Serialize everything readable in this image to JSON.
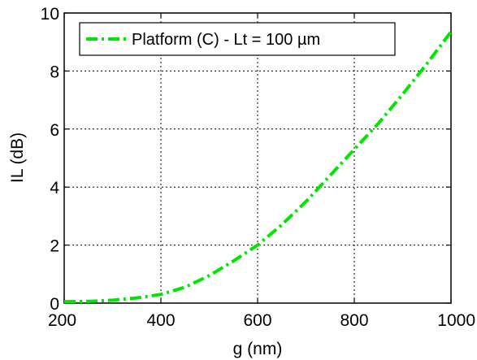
{
  "chart_data": {
    "type": "line",
    "title": "",
    "xlabel": "g (nm)",
    "ylabel": "IL (dB)",
    "xlim": [
      200,
      1000
    ],
    "ylim": [
      0,
      10
    ],
    "xticks": [
      "200",
      "400",
      "600",
      "800",
      "1000"
    ],
    "yticks": [
      "0",
      "2",
      "4",
      "6",
      "8",
      "10"
    ],
    "grid": true,
    "legend_position": "top",
    "series": [
      {
        "name": "Platform (C) - Lt = 100 µm",
        "color": "#00e600",
        "line_style": "dash-dot",
        "x": [
          200,
          250,
          300,
          350,
          400,
          450,
          500,
          550,
          600,
          650,
          700,
          750,
          800,
          850,
          900,
          950,
          1000
        ],
        "y": [
          0.05,
          0.06,
          0.1,
          0.18,
          0.3,
          0.55,
          0.95,
          1.45,
          2.0,
          2.7,
          3.5,
          4.4,
          5.3,
          6.2,
          7.2,
          8.25,
          9.35
        ]
      }
    ]
  }
}
